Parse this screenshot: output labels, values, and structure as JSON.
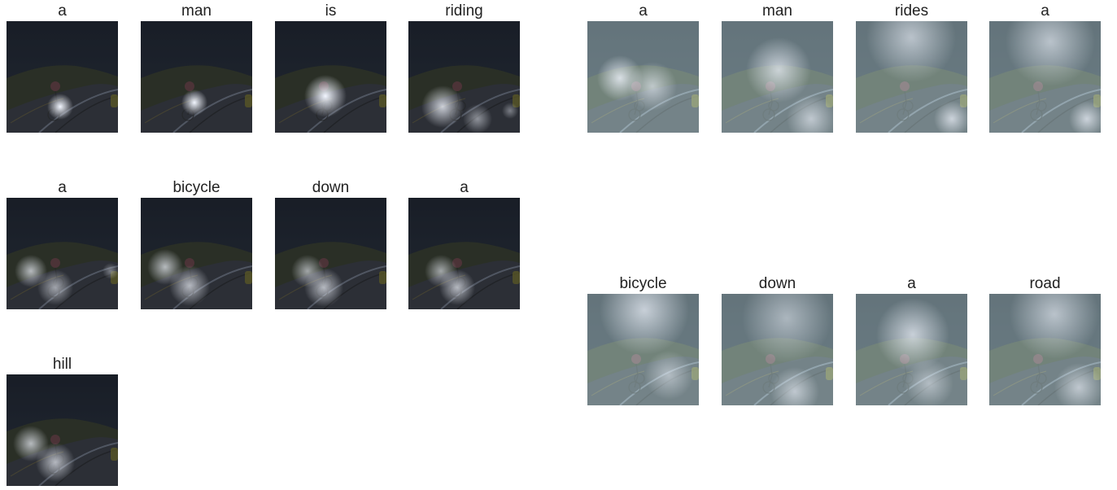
{
  "left_caption": {
    "words": [
      "a",
      "man",
      "is",
      "riding",
      "a",
      "bicycle",
      "down",
      "a",
      "hill"
    ]
  },
  "right_caption": {
    "words": [
      "a",
      "man",
      "rides",
      "a",
      "bicycle",
      "down",
      "a",
      "road"
    ]
  },
  "colors": {
    "sky": "#2b3340",
    "hill": "#39402f",
    "road": "#3c4048",
    "guardrail": "#8c96a6",
    "attention_glow": "#f2f6ff",
    "right_tint": "#b8d4d6"
  }
}
